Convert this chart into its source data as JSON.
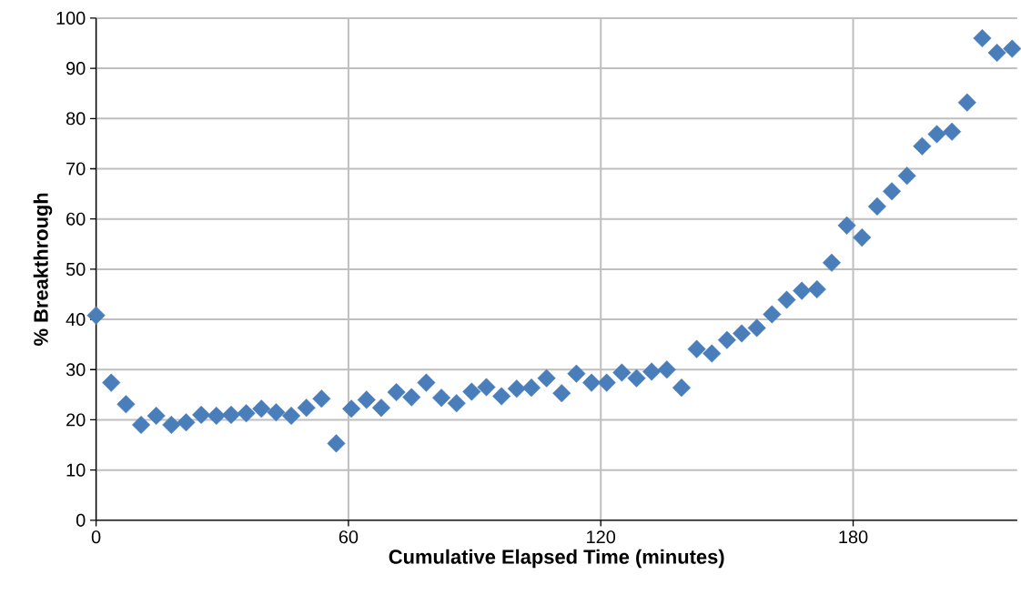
{
  "chart_data": {
    "type": "scatter",
    "xlabel": "Cumulative Elapsed Time (minutes)",
    "ylabel": "% Breakthrough",
    "xlim": [
      0,
      219
    ],
    "xticks": [
      0,
      60,
      120,
      180
    ],
    "ylim": [
      0,
      100
    ],
    "yticks": [
      0,
      10,
      20,
      30,
      40,
      50,
      60,
      70,
      80,
      90,
      100
    ],
    "grid": true,
    "marker": "diamond",
    "series": [
      {
        "color": "#4a7ebb",
        "x": [
          0,
          3.6,
          7.1,
          10.7,
          14.3,
          17.9,
          21.4,
          25.0,
          28.6,
          32.1,
          35.7,
          39.3,
          42.8,
          46.4,
          50.0,
          53.6,
          57.1,
          60.7,
          64.3,
          67.8,
          71.4,
          75.0,
          78.5,
          82.1,
          85.7,
          89.3,
          92.8,
          96.4,
          100.0,
          103.5,
          107.1,
          110.7,
          114.2,
          117.8,
          121.4,
          125.0,
          128.5,
          132.1,
          135.7,
          139.2,
          142.8,
          146.4,
          150.0,
          153.5,
          157.1,
          160.7,
          164.2,
          167.8,
          171.4,
          174.9,
          178.5,
          182.1,
          185.7,
          189.2,
          192.8,
          196.4,
          199.9,
          203.5,
          207.1,
          210.7,
          214.2,
          217.8
        ],
        "values": [
          40.8,
          27.4,
          23.1,
          19.0,
          20.8,
          19.0,
          19.5,
          21.0,
          20.8,
          21.0,
          21.3,
          22.2,
          21.5,
          20.8,
          22.4,
          24.2,
          15.3,
          22.2,
          24.0,
          22.4,
          25.5,
          24.5,
          27.4,
          24.4,
          23.3,
          25.6,
          26.5,
          24.7,
          26.2,
          26.4,
          28.3,
          25.3,
          29.2,
          27.4,
          27.4,
          29.4,
          28.3,
          29.6,
          30.0,
          26.4,
          34.1,
          33.2,
          35.9,
          37.2,
          38.3,
          41.0,
          43.9,
          45.7,
          46.0,
          51.3,
          58.7,
          56.3,
          62.5,
          65.5,
          68.6,
          74.5,
          76.9,
          77.4,
          83.2,
          96.0,
          93.1,
          93.9
        ]
      }
    ]
  }
}
